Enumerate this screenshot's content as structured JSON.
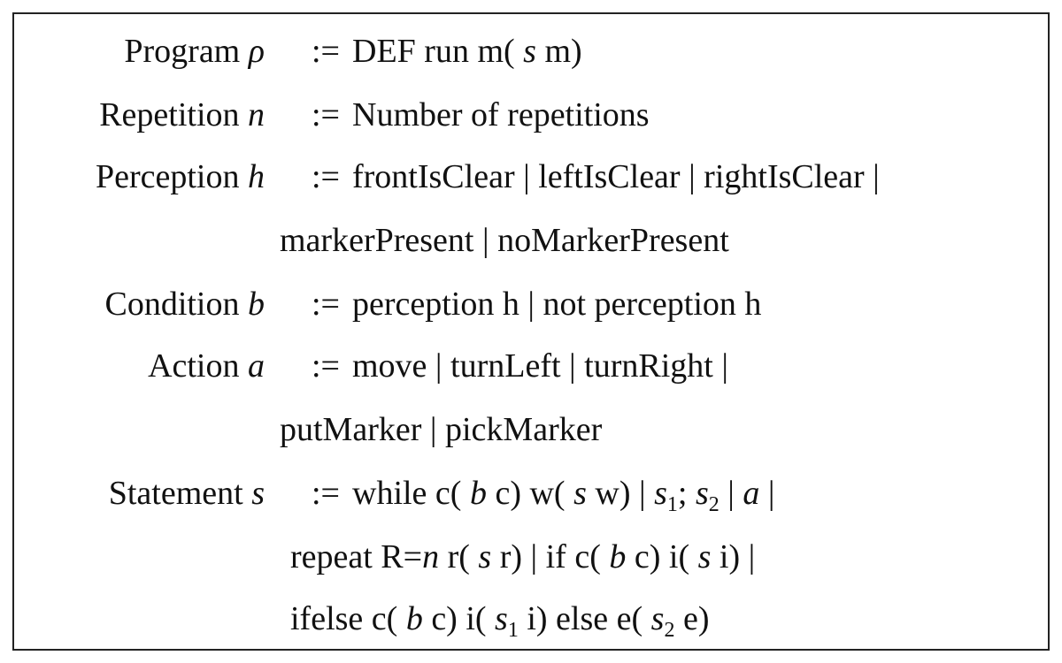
{
  "grammar": {
    "program": {
      "name": "Program",
      "symbol": "ρ",
      "op": ":=",
      "rhs_a": "DEF run m(",
      "rhs_s": "s",
      "rhs_b": "m)"
    },
    "repetition": {
      "name": "Repetition",
      "symbol": "n",
      "op": ":=",
      "rhs": "Number of repetitions"
    },
    "perception": {
      "name": "Perception",
      "symbol": "h",
      "op": ":=",
      "rhs_line1": "frontIsClear | leftIsClear | rightIsClear |",
      "rhs_line2": "markerPresent | noMarkerPresent"
    },
    "condition": {
      "name": "Condition",
      "symbol": "b",
      "op": ":=",
      "rhs": "perception h | not perception h"
    },
    "action": {
      "name": "Action",
      "symbol": "a",
      "op": ":=",
      "rhs_line1": "move | turnLeft | turnRight |",
      "rhs_line2": "putMarker | pickMarker"
    },
    "statement": {
      "name": "Statement",
      "symbol": "s",
      "op": ":=",
      "l1_a": "while c(",
      "l1_b": "b",
      "l1_c": "c) w(",
      "l1_d": "s",
      "l1_e": "w) |",
      "l1_s1": "s",
      "l1_sub1": "1",
      "l1_semi": ";",
      "l1_s2": "s",
      "l1_sub2": "2",
      "l1_bar": "|",
      "l1_a_sym": "a",
      "l1_end": "|",
      "l2_a": "repeat R=",
      "l2_n": "n",
      "l2_b": "r(",
      "l2_s": "s",
      "l2_c": "r) | if c(",
      "l2_bsym": "b",
      "l2_d": "c) i(",
      "l2_s2": "s",
      "l2_e": "i) |",
      "l3_a": "ifelse c(",
      "l3_b": "b",
      "l3_c": "c) i(",
      "l3_s1": "s",
      "l3_sub1": "1",
      "l3_d": "i) else e(",
      "l3_s2": "s",
      "l3_sub2": "2",
      "l3_e": "e)"
    }
  }
}
